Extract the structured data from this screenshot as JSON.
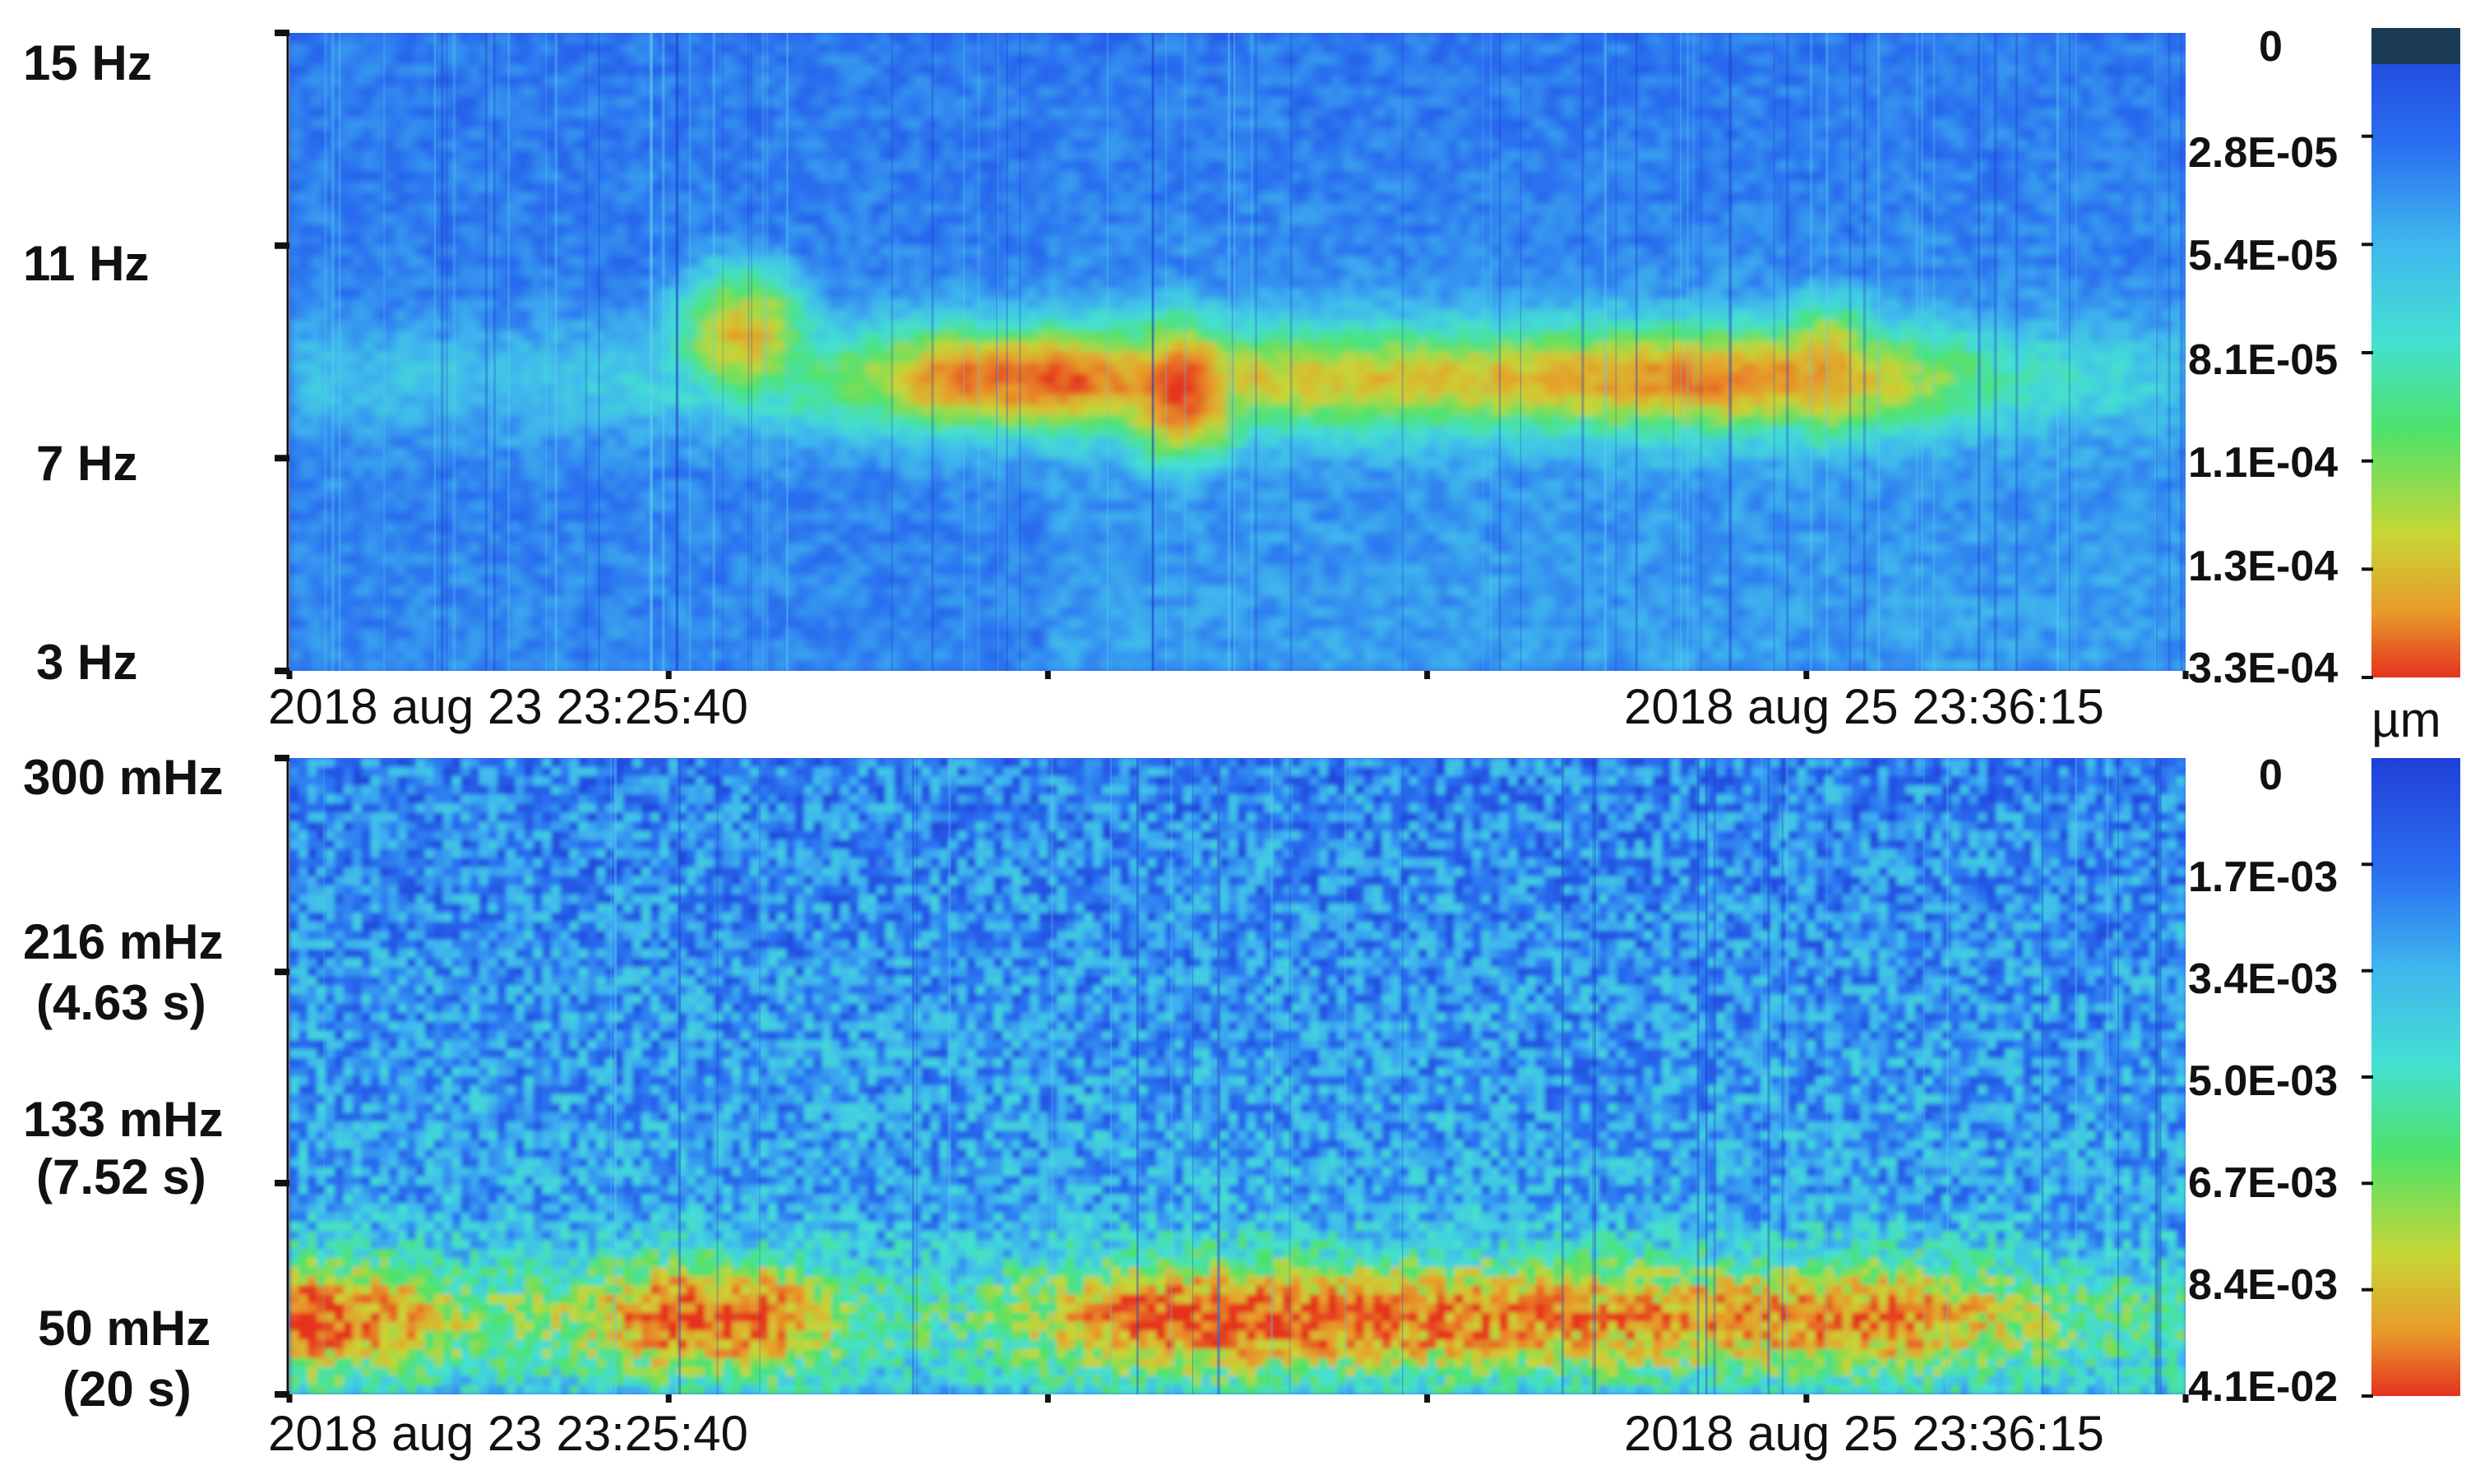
{
  "chart_data": [
    {
      "type": "heatmap",
      "panel": "top",
      "ytick_labels": [
        {
          "label": "15 Hz",
          "value": 15
        },
        {
          "label": "11 Hz",
          "value": 11
        },
        {
          "label": "7 Hz",
          "value": 7
        },
        {
          "label": "3 Hz",
          "value": 3
        }
      ],
      "ylim": [
        3,
        15
      ],
      "xtick_labels": [
        "2018 aug 23 23:25:40",
        "2018 aug 25 23:36:15"
      ],
      "x_minor_ticks": 6,
      "colorbar": {
        "labels": [
          "0",
          "2.8E-05",
          "5.4E-05",
          "8.1E-05",
          "1.1E-04",
          "1.3E-04",
          "3.3E-04"
        ],
        "top_cap_color": "#1b3b55"
      },
      "unit": "",
      "features": {
        "background_level": 0.16,
        "band_freq_hz": [
          7.2,
          9.8
        ],
        "band_levels_by_time": [
          0.3,
          0.3,
          0.3,
          0.32,
          0.36,
          0.45,
          0.6,
          0.9,
          0.95,
          0.78,
          0.7,
          0.72,
          0.72,
          0.74,
          0.82,
          0.86,
          0.8,
          0.68,
          0.45,
          0.35,
          0.3
        ],
        "hotspots": [
          {
            "t": 0.47,
            "f": 8.3,
            "level": 1.0
          },
          {
            "t": 0.24,
            "f": 9.3,
            "level": 0.8
          },
          {
            "t": 0.81,
            "f": 8.6,
            "level": 0.86
          }
        ]
      }
    },
    {
      "type": "heatmap",
      "panel": "bottom",
      "ytick_labels": [
        {
          "label": "300 mHz",
          "sublabel": "",
          "value": 300
        },
        {
          "label": "216 mHz",
          "sublabel": "(4.63 s)",
          "value": 216
        },
        {
          "label": "133 mHz",
          "sublabel": "(7.52 s)",
          "value": 133
        },
        {
          "label": "50 mHz",
          "sublabel": "(20 s)",
          "value": 50
        }
      ],
      "ylim": [
        50,
        300
      ],
      "xtick_labels": [
        "2018 aug 23 23:25:40",
        "2018 aug 25 23:36:15"
      ],
      "x_minor_ticks": 6,
      "colorbar": {
        "labels": [
          "0",
          "1.7E-03",
          "3.4E-03",
          "5.0E-03",
          "6.7E-03",
          "8.4E-03",
          "4.1E-02"
        ]
      },
      "unit": "µm",
      "features": {
        "background_level": 0.18,
        "band_freq_mhz": [
          50,
          110
        ],
        "band_levels_by_time": [
          0.92,
          0.8,
          0.5,
          0.55,
          0.9,
          0.88,
          0.45,
          0.4,
          0.62,
          0.88,
          0.92,
          0.86,
          0.82,
          0.8,
          0.78,
          0.76,
          0.8,
          0.82,
          0.62,
          0.45,
          0.4
        ]
      }
    }
  ],
  "colormap": [
    "#1f3fd8",
    "#2a6ff0",
    "#3fb6ee",
    "#44e0d2",
    "#4ee26a",
    "#c8d636",
    "#e89a2a",
    "#e5331f"
  ]
}
